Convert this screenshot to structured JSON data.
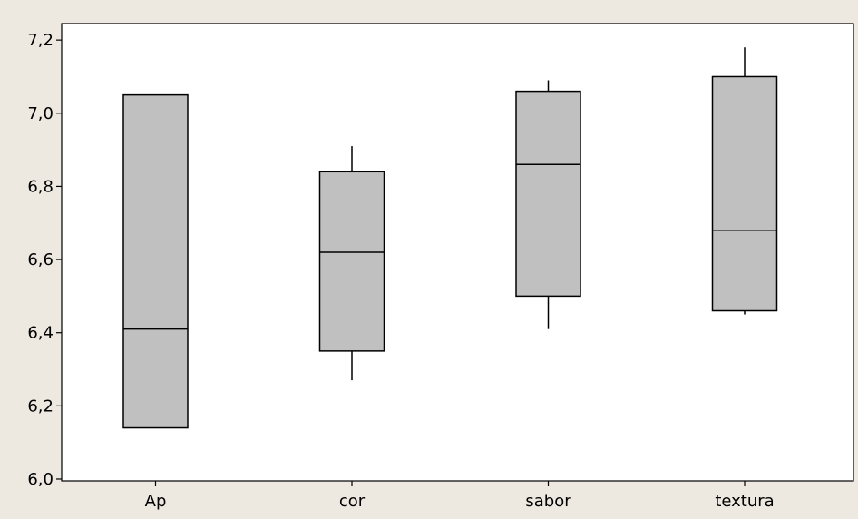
{
  "chart_data": {
    "type": "boxplot",
    "categories": [
      "Ap",
      "cor",
      "sabor",
      "textura"
    ],
    "boxes": [
      {
        "category": "Ap",
        "whisker_low": 6.14,
        "q1": 6.14,
        "median": 6.41,
        "q3": 7.05,
        "whisker_high": 7.05
      },
      {
        "category": "cor",
        "whisker_low": 6.27,
        "q1": 6.35,
        "median": 6.62,
        "q3": 6.84,
        "whisker_high": 6.91
      },
      {
        "category": "sabor",
        "whisker_low": 6.41,
        "q1": 6.5,
        "median": 6.86,
        "q3": 7.06,
        "whisker_high": 7.09
      },
      {
        "category": "textura",
        "whisker_low": 6.45,
        "q1": 6.46,
        "median": 6.68,
        "q3": 7.1,
        "whisker_high": 7.18
      }
    ],
    "y_ticks": [
      "6,0",
      "6,2",
      "6,4",
      "6,6",
      "6,8",
      "7,0",
      "7,2"
    ],
    "y_tick_values": [
      6.0,
      6.2,
      6.4,
      6.6,
      6.8,
      7.0,
      7.2
    ],
    "ylim": [
      5.995,
      7.245
    ],
    "grid": false,
    "colors": {
      "box_fill": "#c0c0c0",
      "stroke": "#000000",
      "plot_bg": "#ffffff",
      "page_bg": "#ede9e0"
    }
  }
}
